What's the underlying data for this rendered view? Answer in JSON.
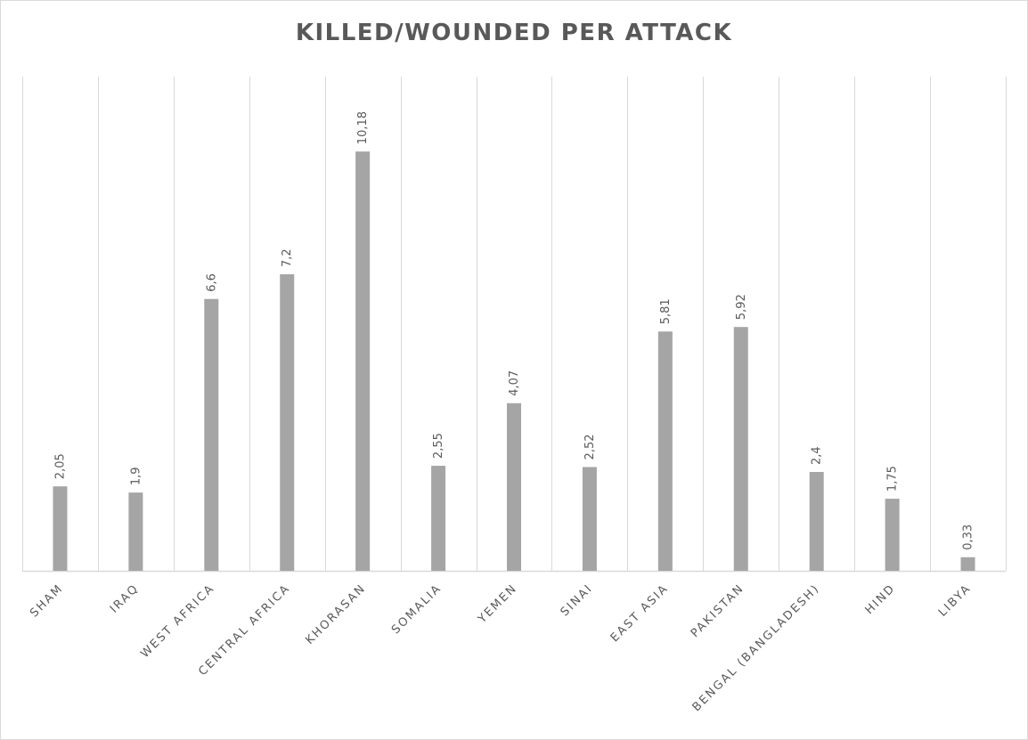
{
  "chart_data": {
    "type": "bar",
    "title": "KILLED/WOUNDED PER ATTACK",
    "xlabel": "",
    "ylabel": "",
    "categories": [
      "SHAM",
      "IRAQ",
      "WEST AFRICA",
      "CENTRAL AFRICA",
      "KHORASAN",
      "SOMALIA",
      "YEMEN",
      "SINAI",
      "EAST ASIA",
      "PAKISTAN",
      "BENGAL (BANGLADESH)",
      "HIND",
      "LIBYA"
    ],
    "values": [
      2.05,
      1.9,
      6.6,
      7.2,
      10.18,
      2.55,
      4.07,
      2.52,
      5.81,
      5.92,
      2.4,
      1.75,
      0.33
    ],
    "data_labels": [
      "2,05",
      "1,9",
      "6,6",
      "7,2",
      "10,18",
      "2,55",
      "4,07",
      "2,52",
      "5,81",
      "5,92",
      "2,4",
      "1,75",
      "0,33"
    ],
    "ylim": [
      0,
      12
    ],
    "grid": "vertical category separators",
    "legend": "none",
    "bar_color": "#a5a5a5",
    "grid_color": "#d9d9d9",
    "axis_color": "#d9d9d9",
    "text_color": "#595959"
  }
}
